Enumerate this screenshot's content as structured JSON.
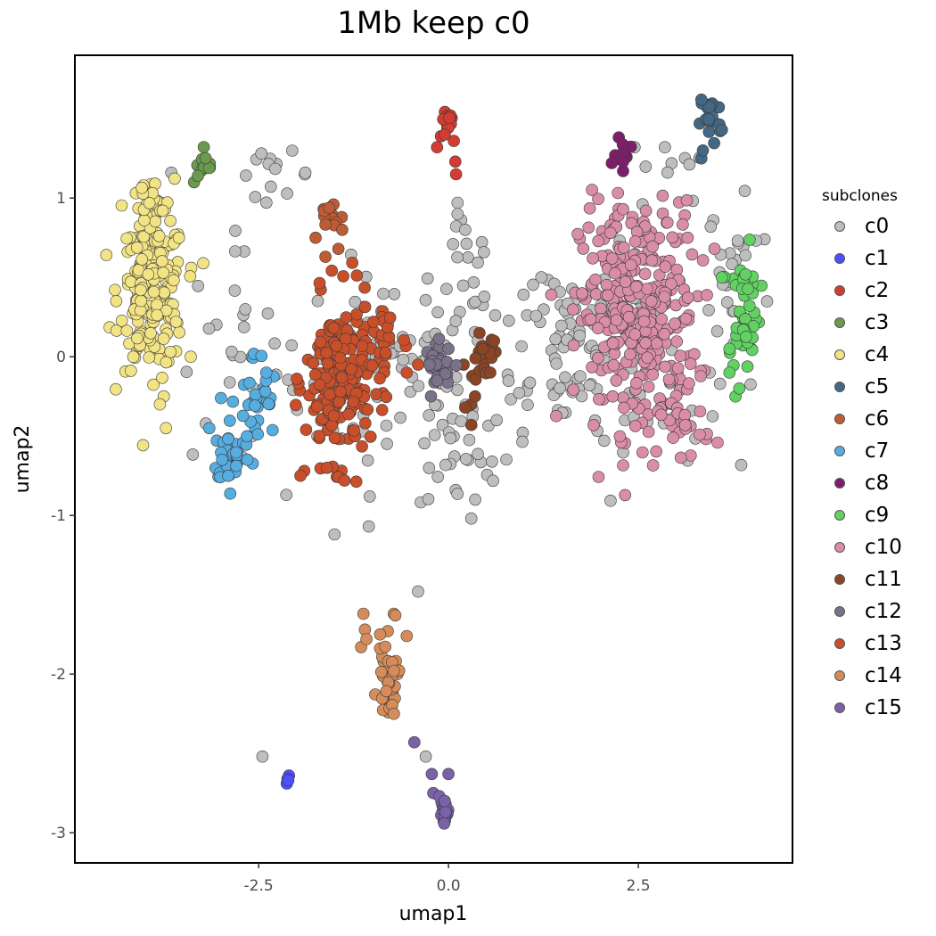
{
  "chart_data": {
    "type": "scatter",
    "title": "1Mb keep c0",
    "xlabel": "umap1",
    "ylabel": "umap2",
    "xlim": [
      -4.92,
      4.53
    ],
    "ylim": [
      -3.19,
      1.9
    ],
    "xticks": [
      {
        "value": -2.5,
        "label": "-2.5"
      },
      {
        "value": 0.0,
        "label": "0.0"
      },
      {
        "value": 2.5,
        "label": "2.5"
      }
    ],
    "yticks": [
      {
        "value": 1,
        "label": "1"
      },
      {
        "value": 0,
        "label": "0"
      },
      {
        "value": -1,
        "label": "-1"
      },
      {
        "value": -2,
        "label": "-2"
      },
      {
        "value": -3,
        "label": "-3"
      }
    ],
    "grid": false,
    "legend": {
      "title": "subclones",
      "position": "right"
    },
    "series": [
      {
        "name": "c0",
        "color": "#BEBEBE",
        "clusters": [
          {
            "cx": -0.8,
            "cy": -0.1,
            "sx": 0.9,
            "sy": 0.35,
            "n": 90
          },
          {
            "cx": 0.2,
            "cy": -0.6,
            "sx": 0.35,
            "sy": 0.25,
            "n": 30
          },
          {
            "cx": 1.5,
            "cy": 0.15,
            "sx": 0.6,
            "sy": 0.35,
            "n": 70
          },
          {
            "cx": 2.6,
            "cy": 0.0,
            "sx": 0.9,
            "sy": 0.5,
            "n": 70
          },
          {
            "cx": 3.75,
            "cy": 0.55,
            "sx": 0.2,
            "sy": 0.25,
            "n": 25
          },
          {
            "cx": -2.3,
            "cy": 1.15,
            "sx": 0.3,
            "sy": 0.08,
            "n": 14
          },
          {
            "cx": -2.9,
            "cy": 0.0,
            "sx": 0.4,
            "sy": 0.4,
            "n": 25
          },
          {
            "cx": 0.2,
            "cy": 0.45,
            "sx": 0.3,
            "sy": 0.3,
            "n": 15
          },
          {
            "cx": 3.0,
            "cy": 1.25,
            "sx": 0.3,
            "sy": 0.1,
            "n": 6
          }
        ],
        "points": [
          [
            -0.4,
            -1.48
          ],
          [
            -0.3,
            -2.52
          ],
          [
            -2.45,
            -2.52
          ],
          [
            -1.05,
            -1.07
          ],
          [
            -1.5,
            -1.12
          ],
          [
            0.3,
            -1.02
          ],
          [
            0.12,
            0.97
          ],
          [
            0.12,
            0.9
          ],
          [
            0.22,
            0.8
          ],
          [
            2.45,
            1.32
          ],
          [
            2.85,
            1.32
          ],
          [
            -3.65,
            1.16
          ]
        ]
      },
      {
        "name": "c1",
        "color": "#4F4FFF",
        "points": [
          [
            -2.1,
            -2.64
          ],
          [
            -2.12,
            -2.66
          ],
          [
            -2.13,
            -2.69
          ],
          [
            -2.11,
            -2.67
          ]
        ]
      },
      {
        "name": "c2",
        "color": "#D33C32",
        "clusters": [
          {
            "cx": 0.0,
            "cy": 1.5,
            "sx": 0.04,
            "sy": 0.06,
            "n": 14
          }
        ],
        "points": [
          [
            -0.15,
            1.32
          ],
          [
            -0.1,
            1.39
          ],
          [
            0.07,
            1.36
          ],
          [
            0.09,
            1.23
          ],
          [
            0.1,
            1.15
          ],
          [
            -0.05,
            1.4
          ]
        ]
      },
      {
        "name": "c3",
        "color": "#6A9A4D",
        "clusters": [
          {
            "cx": -3.2,
            "cy": 1.21,
            "sx": 0.06,
            "sy": 0.04,
            "n": 12
          }
        ],
        "points": [
          [
            -3.35,
            1.1
          ],
          [
            -3.3,
            1.14
          ]
        ]
      },
      {
        "name": "c4",
        "color": "#F2E385",
        "clusters": [
          {
            "cx": -3.9,
            "cy": 0.4,
            "sx": 0.25,
            "sy": 0.28,
            "n": 200
          },
          {
            "cx": -3.95,
            "cy": 0.95,
            "sx": 0.2,
            "sy": 0.1,
            "n": 25
          }
        ],
        "points": [
          [
            -3.75,
            -0.25
          ],
          [
            -3.72,
            -0.45
          ],
          [
            -3.8,
            -0.3
          ],
          [
            -3.55,
            0.75
          ]
        ]
      },
      {
        "name": "c5",
        "color": "#446883",
        "clusters": [
          {
            "cx": 3.45,
            "cy": 1.5,
            "sx": 0.08,
            "sy": 0.1,
            "n": 20
          }
        ],
        "points": [
          [
            3.33,
            1.25
          ],
          [
            3.35,
            1.3
          ],
          [
            3.6,
            1.43
          ],
          [
            3.33,
            1.62
          ]
        ]
      },
      {
        "name": "c6",
        "color": "#BE5C35",
        "clusters": [
          {
            "cx": -1.55,
            "cy": 0.88,
            "sx": 0.1,
            "sy": 0.07,
            "n": 16
          }
        ],
        "points": [
          [
            -1.62,
            0.63
          ],
          [
            -1.45,
            0.68
          ],
          [
            -1.75,
            0.75
          ],
          [
            -1.4,
            0.8
          ]
        ]
      },
      {
        "name": "c7",
        "color": "#56ADE0",
        "clusters": [
          {
            "cx": -2.85,
            "cy": -0.62,
            "sx": 0.15,
            "sy": 0.1,
            "n": 40
          },
          {
            "cx": -2.55,
            "cy": -0.3,
            "sx": 0.18,
            "sy": 0.2,
            "n": 30
          }
        ],
        "points": [
          [
            -2.4,
            -0.1
          ],
          [
            -3.15,
            -0.45
          ],
          [
            -2.9,
            -0.75
          ]
        ]
      },
      {
        "name": "c8",
        "color": "#7E1E6B",
        "clusters": [
          {
            "cx": 2.3,
            "cy": 1.32,
            "sx": 0.05,
            "sy": 0.05,
            "n": 10
          }
        ],
        "points": [
          [
            2.15,
            1.22
          ],
          [
            2.3,
            1.17
          ],
          [
            2.3,
            1.23
          ]
        ]
      },
      {
        "name": "c9",
        "color": "#61D262",
        "clusters": [
          {
            "cx": 3.9,
            "cy": 0.3,
            "sx": 0.12,
            "sy": 0.22,
            "n": 45
          }
        ],
        "points": [
          [
            3.7,
            0.05
          ],
          [
            3.78,
            -0.25
          ],
          [
            3.83,
            -0.2
          ],
          [
            3.6,
            0.5
          ],
          [
            3.7,
            -0.1
          ]
        ]
      },
      {
        "name": "c10",
        "color": "#D98EA6",
        "clusters": [
          {
            "cx": 2.5,
            "cy": 0.25,
            "sx": 0.45,
            "sy": 0.42,
            "n": 320
          },
          {
            "cx": 3.1,
            "cy": -0.45,
            "sx": 0.2,
            "sy": 0.1,
            "n": 20
          }
        ],
        "points": [
          [
            2.3,
            0.93
          ],
          [
            2.6,
            0.92
          ],
          [
            1.9,
            0.62
          ],
          [
            3.15,
            0.75
          ]
        ]
      },
      {
        "name": "c11",
        "color": "#8C4524",
        "clusters": [
          {
            "cx": 0.45,
            "cy": 0.0,
            "sx": 0.12,
            "sy": 0.08,
            "n": 18
          }
        ],
        "points": [
          [
            0.3,
            -0.3
          ],
          [
            0.35,
            -0.25
          ],
          [
            0.22,
            -0.32
          ],
          [
            0.55,
            -0.1
          ],
          [
            0.3,
            -0.43
          ],
          [
            0.2,
            -0.05
          ],
          [
            0.45,
            0.05
          ],
          [
            0.6,
            0.1
          ]
        ]
      },
      {
        "name": "c12",
        "color": "#7B7189",
        "clusters": [
          {
            "cx": -0.1,
            "cy": -0.05,
            "sx": 0.12,
            "sy": 0.08,
            "n": 25
          }
        ],
        "points": [
          [
            -0.25,
            -0.05
          ],
          [
            -0.15,
            -0.15
          ],
          [
            0.0,
            0.05
          ]
        ]
      },
      {
        "name": "c13",
        "color": "#C94F2A",
        "clusters": [
          {
            "cx": -1.45,
            "cy": -0.15,
            "sx": 0.25,
            "sy": 0.3,
            "n": 200
          },
          {
            "cx": -0.85,
            "cy": 0.1,
            "sx": 0.15,
            "sy": 0.2,
            "n": 25
          }
        ],
        "points": [
          [
            -1.9,
            -0.72
          ],
          [
            -1.95,
            -0.75
          ],
          [
            -1.6,
            -0.7
          ],
          [
            -0.55,
            -0.1
          ],
          [
            -0.4,
            -0.05
          ]
        ]
      },
      {
        "name": "c14",
        "color": "#D58C5A",
        "clusters": [
          {
            "cx": -0.8,
            "cy": -2.05,
            "sx": 0.08,
            "sy": 0.1,
            "n": 30
          }
        ],
        "points": [
          [
            -1.12,
            -1.62
          ],
          [
            -0.72,
            -1.62
          ],
          [
            -0.7,
            -1.63
          ],
          [
            -1.1,
            -1.72
          ],
          [
            -1.15,
            -1.83
          ],
          [
            -0.8,
            -1.73
          ],
          [
            -0.55,
            -1.76
          ],
          [
            -0.72,
            -2.25
          ],
          [
            -1.08,
            -1.78
          ],
          [
            -0.9,
            -1.75
          ]
        ]
      },
      {
        "name": "c15",
        "color": "#7B62A8",
        "clusters": [
          {
            "cx": -0.05,
            "cy": -2.88,
            "sx": 0.04,
            "sy": 0.05,
            "n": 18
          }
        ],
        "points": [
          [
            -0.45,
            -2.43
          ],
          [
            -0.22,
            -2.63
          ],
          [
            0.0,
            -2.63
          ],
          [
            -0.2,
            -2.75
          ],
          [
            -0.12,
            -2.77
          ],
          [
            -0.05,
            -2.8
          ]
        ]
      }
    ]
  }
}
